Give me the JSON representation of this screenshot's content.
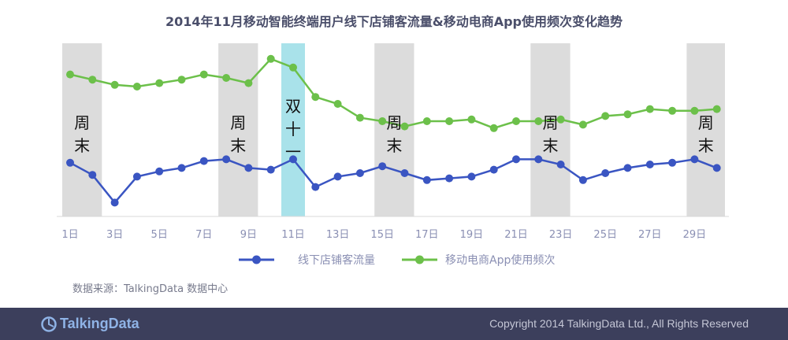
{
  "chart_data": {
    "type": "line",
    "title": "2014年11月移动智能终端用户线下店铺客流量&移动电商App使用频次变化趋势",
    "x": [
      1,
      2,
      3,
      4,
      5,
      6,
      7,
      8,
      9,
      10,
      11,
      12,
      13,
      14,
      15,
      16,
      17,
      18,
      19,
      20,
      21,
      22,
      23,
      24,
      25,
      26,
      27,
      28,
      29,
      30
    ],
    "x_tick_labels": [
      "1日",
      "3日",
      "5日",
      "7日",
      "9日",
      "11日",
      "13日",
      "15日",
      "17日",
      "19日",
      "21日",
      "23日",
      "25日",
      "27日",
      "29日"
    ],
    "x_tick_days": [
      1,
      3,
      5,
      7,
      9,
      11,
      13,
      15,
      17,
      19,
      21,
      23,
      25,
      27,
      29
    ],
    "series": [
      {
        "name": "线下店铺客流量",
        "color": "#3a55c2",
        "values": [
          31,
          24,
          8,
          23,
          26,
          28,
          32,
          33,
          28,
          27,
          33,
          17,
          23,
          25,
          29,
          25,
          21,
          22,
          23,
          27,
          33,
          33,
          30,
          21,
          25,
          28,
          30,
          31,
          33,
          28
        ]
      },
      {
        "name": "移动电商App使用频次",
        "color": "#6cc04a",
        "values": [
          82,
          79,
          76,
          75,
          77,
          79,
          82,
          80,
          77,
          91,
          86,
          69,
          65,
          57,
          55,
          52,
          55,
          55,
          56,
          51,
          55,
          55,
          56,
          53,
          58,
          59,
          62,
          61,
          61,
          62
        ]
      }
    ],
    "highlight_bands": [
      {
        "type": "weekend",
        "label": "周末",
        "start_day": 1,
        "end_day": 2
      },
      {
        "type": "weekend",
        "label": "周末",
        "start_day": 8,
        "end_day": 9
      },
      {
        "type": "singles-day",
        "label": "双十一",
        "start_day": 11,
        "end_day": 11
      },
      {
        "type": "weekend",
        "label": "周末",
        "start_day": 15,
        "end_day": 16
      },
      {
        "type": "weekend",
        "label": "周末",
        "start_day": 22,
        "end_day": 23
      },
      {
        "type": "weekend",
        "label": "周末",
        "start_day": 29,
        "end_day": 30
      }
    ],
    "colors": {
      "weekend_band": "#dcdcdc",
      "singles_band": "#a9e2ea",
      "tick_label": "#8a8fb3",
      "axis": "#d9d9d9"
    },
    "grid": false,
    "legend_position": "bottom"
  },
  "source_text": "数据来源：TalkingData 数据中心",
  "footer": {
    "brand": "TalkingData",
    "copyright": "Copyright 2014 TalkingData Ltd., All Rights Reserved"
  }
}
